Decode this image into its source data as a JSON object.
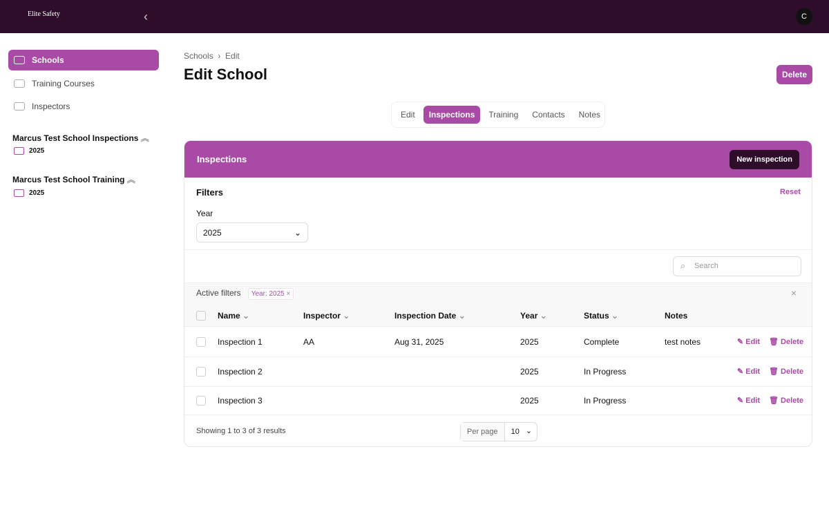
{
  "header": {
    "logo_text": "Elite Safety",
    "avatar": "C"
  },
  "sidebar": {
    "items": [
      {
        "label": "Schools",
        "active": true
      },
      {
        "label": "Training Courses"
      },
      {
        "label": "Inspectors"
      }
    ],
    "groups": [
      {
        "title": "Marcus Test School Inspections",
        "folder": "2025"
      },
      {
        "title": "Marcus Test School Training",
        "folder": "2025"
      }
    ]
  },
  "breadcrumb": [
    "Schools",
    "Edit"
  ],
  "page_title": "Edit School",
  "delete_label": "Delete",
  "tabs": [
    "Edit",
    "Inspections",
    "Training",
    "Contacts",
    "Notes"
  ],
  "panel": {
    "title": "Inspections",
    "new_label": "New inspection",
    "filters_label": "Filters",
    "reset_label": "Reset",
    "year_label": "Year",
    "year_value": "2025",
    "search_placeholder": "Search",
    "active_filters_label": "Active filters",
    "chip": "Year: 2025"
  },
  "table": {
    "columns": [
      "Name",
      "Inspector",
      "Inspection Date",
      "Year",
      "Status",
      "Notes"
    ],
    "rows": [
      {
        "name": "Inspection 1",
        "inspector": "AA",
        "date": "Aug 31, 2025",
        "year": "2025",
        "status": "Complete",
        "notes": "test notes"
      },
      {
        "name": "Inspection 2",
        "inspector": "",
        "date": "",
        "year": "2025",
        "status": "In Progress",
        "notes": ""
      },
      {
        "name": "Inspection 3",
        "inspector": "",
        "date": "",
        "year": "2025",
        "status": "In Progress",
        "notes": ""
      }
    ],
    "edit_label": "Edit",
    "delete_label": "Delete"
  },
  "footer": {
    "summary": "Showing 1 to 3 of 3 results",
    "per_page_label": "Per page",
    "per_page": "10"
  },
  "colors": {
    "accent": "#a84aa6",
    "topbar": "#2e0d2b"
  }
}
